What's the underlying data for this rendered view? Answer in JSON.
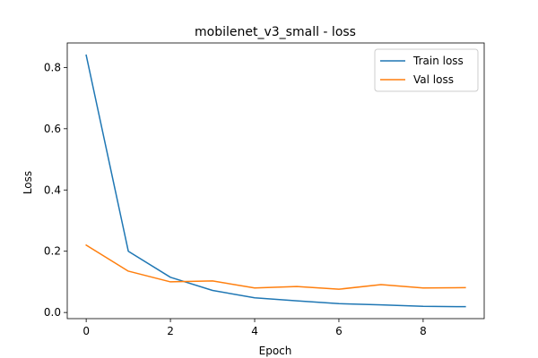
{
  "chart_data": {
    "type": "line",
    "title": "mobilenet_v3_small - loss",
    "xlabel": "Epoch",
    "ylabel": "Loss",
    "x": [
      0,
      1,
      2,
      3,
      4,
      5,
      6,
      7,
      8,
      9
    ],
    "xlim": [
      -0.45,
      9.45
    ],
    "ylim": [
      -0.02,
      0.88
    ],
    "xticks": [
      0,
      2,
      4,
      6,
      8
    ],
    "yticks": [
      0.0,
      0.2,
      0.4,
      0.6,
      0.8
    ],
    "ytick_labels": [
      "0.0",
      "0.2",
      "0.4",
      "0.6",
      "0.8"
    ],
    "grid": false,
    "legend_position": "top-right",
    "series": [
      {
        "name": "Train loss",
        "color": "#1f77b4",
        "values": [
          0.84,
          0.2,
          0.115,
          0.072,
          0.048,
          0.038,
          0.029,
          0.025,
          0.02,
          0.019
        ]
      },
      {
        "name": "Val loss",
        "color": "#ff7f0e",
        "values": [
          0.22,
          0.135,
          0.1,
          0.103,
          0.08,
          0.085,
          0.076,
          0.091,
          0.08,
          0.081
        ]
      }
    ]
  }
}
